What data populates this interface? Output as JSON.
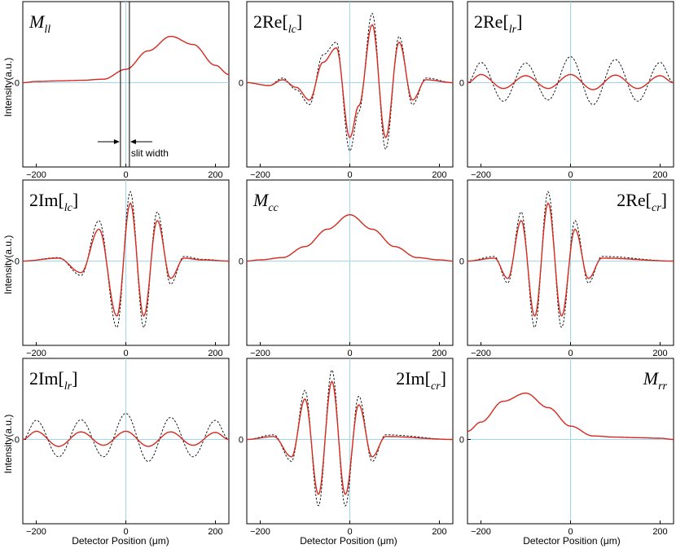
{
  "figure": {
    "xlabel": "Detector Position (μm)",
    "ylabel": "Intensity(a.u.)",
    "annotation": "slit width"
  },
  "colors": {
    "fit": "#d62a1e",
    "data": "#000000",
    "axis_zero": "#9fd8ee"
  },
  "chart_data": [
    {
      "type": "line",
      "title_main": "M",
      "title_sub": "ll",
      "title_pos": "left",
      "xlim": [
        -230,
        230
      ],
      "xticks": [
        -200,
        0,
        200
      ],
      "ytick": "0",
      "ylim": [
        -1.2,
        1.2
      ],
      "x": [
        -230,
        -200,
        -150,
        -100,
        -50,
        0,
        50,
        100,
        150,
        200,
        230
      ],
      "series": [
        {
          "values": [
            0.0,
            0.02,
            0.03,
            0.04,
            0.06,
            0.23,
            0.55,
            0.8,
            0.66,
            0.3,
            0.14
          ]
        },
        {
          "values": [
            0.0,
            0.02,
            0.03,
            0.04,
            0.06,
            0.23,
            0.55,
            0.8,
            0.66,
            0.3,
            0.14
          ]
        }
      ]
    },
    {
      "type": "line",
      "title_main": "2Re[",
      "title_sub": "lc",
      "title_end": "]",
      "title_pos": "left",
      "xlim": [
        -230,
        230
      ],
      "xticks": [
        -200,
        0,
        200
      ],
      "ytick": "0",
      "ylim": [
        -1.2,
        1.2
      ],
      "x": [
        -230,
        -180,
        -150,
        -120,
        -90,
        -60,
        -30,
        0,
        20,
        50,
        80,
        110,
        140,
        170,
        230
      ],
      "series": [
        {
          "values": [
            0.0,
            -0.05,
            0.05,
            -0.08,
            -0.3,
            0.35,
            0.6,
            -0.95,
            -0.4,
            1.0,
            -0.95,
            0.7,
            -0.3,
            0.05,
            0.0
          ]
        },
        {
          "values": [
            0.0,
            -0.05,
            0.08,
            -0.12,
            -0.38,
            0.48,
            0.7,
            -1.18,
            -0.5,
            1.2,
            -1.15,
            0.8,
            -0.38,
            0.08,
            0.0
          ]
        }
      ]
    },
    {
      "type": "line",
      "title_main": "2Re[",
      "title_sub": "lr",
      "title_end": "]",
      "title_pos": "left",
      "xlim": [
        -230,
        230
      ],
      "xticks": [
        -200,
        0,
        200
      ],
      "ytick": "0",
      "ylim": [
        -1.2,
        1.2
      ],
      "x": [
        -230,
        -200,
        -150,
        -100,
        -50,
        0,
        50,
        100,
        150,
        200,
        230
      ],
      "series": [
        {
          "values": [
            0.0,
            0.14,
            -0.1,
            0.12,
            -0.1,
            0.14,
            -0.12,
            0.13,
            -0.1,
            0.12,
            0.0
          ]
        },
        {
          "values": [
            0.0,
            0.35,
            -0.32,
            0.34,
            -0.3,
            0.45,
            -0.38,
            0.4,
            -0.32,
            0.35,
            0.0
          ]
        }
      ]
    },
    {
      "type": "line",
      "title_main": "2Im[",
      "title_sub": "lc",
      "title_end": "]",
      "title_pos": "left",
      "xlim": [
        -230,
        230
      ],
      "xticks": [
        -200,
        0,
        200
      ],
      "ytick": "0",
      "ylim": [
        -1.2,
        1.2
      ],
      "x": [
        -230,
        -150,
        -100,
        -60,
        -20,
        10,
        40,
        70,
        100,
        130,
        170,
        230
      ],
      "series": [
        {
          "values": [
            0.0,
            0.05,
            -0.2,
            0.55,
            -0.95,
            1.0,
            -0.95,
            0.7,
            -0.3,
            0.05,
            0.02,
            0.0
          ]
        },
        {
          "values": [
            0.0,
            0.06,
            -0.25,
            0.7,
            -1.15,
            1.2,
            -1.15,
            0.85,
            -0.4,
            0.08,
            0.03,
            0.0
          ]
        }
      ]
    },
    {
      "type": "line",
      "title_main": "M",
      "title_sub": "cc",
      "title_pos": "left",
      "xlim": [
        -230,
        230
      ],
      "xticks": [
        -200,
        0,
        200
      ],
      "ytick": "0",
      "ylim": [
        -1.2,
        1.2
      ],
      "x": [
        -230,
        -200,
        -150,
        -100,
        -50,
        0,
        50,
        100,
        150,
        200,
        230
      ],
      "series": [
        {
          "values": [
            0.0,
            0.02,
            0.06,
            0.25,
            0.55,
            0.8,
            0.55,
            0.25,
            0.06,
            0.02,
            0.0
          ]
        },
        {
          "values": [
            0.0,
            0.02,
            0.06,
            0.25,
            0.55,
            0.8,
            0.55,
            0.25,
            0.06,
            0.02,
            0.0
          ]
        }
      ]
    },
    {
      "type": "line",
      "title_main": "2Re[",
      "title_sub": "cr",
      "title_end": "]",
      "title_pos": "right",
      "xlim": [
        -230,
        230
      ],
      "xticks": [
        -200,
        0,
        200
      ],
      "ytick": "0",
      "ylim": [
        -1.2,
        1.2
      ],
      "x": [
        -230,
        -170,
        -140,
        -110,
        -80,
        -50,
        -20,
        10,
        40,
        70,
        230
      ],
      "series": [
        {
          "values": [
            0.0,
            0.05,
            -0.3,
            0.7,
            -0.95,
            1.0,
            -0.95,
            0.55,
            -0.3,
            0.05,
            0.0
          ]
        },
        {
          "values": [
            0.0,
            0.08,
            -0.38,
            0.85,
            -1.15,
            1.2,
            -1.15,
            0.7,
            -0.38,
            0.08,
            0.0
          ]
        }
      ]
    },
    {
      "type": "line",
      "title_main": "2Im[",
      "title_sub": "lr",
      "title_end": "]",
      "title_pos": "left",
      "xlim": [
        -230,
        230
      ],
      "xticks": [
        -200,
        0,
        200
      ],
      "ytick": "0",
      "ylim": [
        -1.2,
        1.2
      ],
      "x": [
        -230,
        -200,
        -150,
        -100,
        -50,
        0,
        50,
        100,
        150,
        200,
        230
      ],
      "series": [
        {
          "values": [
            0.0,
            0.14,
            -0.12,
            0.13,
            -0.1,
            0.14,
            -0.12,
            0.13,
            -0.1,
            0.12,
            0.0
          ]
        },
        {
          "values": [
            0.0,
            0.33,
            -0.3,
            0.34,
            -0.3,
            0.45,
            -0.38,
            0.38,
            -0.3,
            0.33,
            0.0
          ]
        }
      ]
    },
    {
      "type": "line",
      "title_main": "2Im[",
      "title_sub": "cr",
      "title_end": "]",
      "title_pos": "right",
      "xlim": [
        -230,
        230
      ],
      "xticks": [
        -200,
        0,
        200
      ],
      "ytick": "0",
      "ylim": [
        -1.2,
        1.2
      ],
      "x": [
        -230,
        -170,
        -130,
        -100,
        -70,
        -40,
        -10,
        20,
        50,
        80,
        230
      ],
      "series": [
        {
          "values": [
            0.0,
            0.05,
            -0.3,
            0.7,
            -0.95,
            1.0,
            -0.95,
            0.6,
            -0.3,
            0.05,
            0.0
          ]
        },
        {
          "values": [
            0.0,
            0.08,
            -0.38,
            0.85,
            -1.15,
            1.2,
            -1.15,
            0.75,
            -0.38,
            0.08,
            0.0
          ]
        }
      ]
    },
    {
      "type": "line",
      "title_main": "M",
      "title_sub": "rr",
      "title_pos": "right",
      "xlim": [
        -230,
        230
      ],
      "xticks": [
        -200,
        0,
        200
      ],
      "ytick": "0",
      "ylim": [
        -1.2,
        1.2
      ],
      "x": [
        -230,
        -200,
        -150,
        -100,
        -50,
        0,
        50,
        100,
        150,
        200,
        230
      ],
      "series": [
        {
          "values": [
            0.14,
            0.3,
            0.66,
            0.8,
            0.55,
            0.23,
            0.06,
            0.04,
            0.03,
            0.02,
            0.0
          ]
        },
        {
          "values": [
            0.14,
            0.3,
            0.66,
            0.8,
            0.55,
            0.23,
            0.06,
            0.04,
            0.03,
            0.02,
            0.0
          ]
        }
      ]
    }
  ]
}
